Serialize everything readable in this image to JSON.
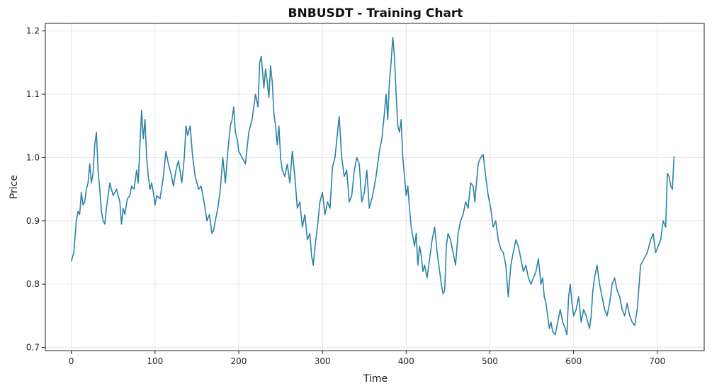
{
  "chart_data": {
    "type": "line",
    "title": "BNBUSDT - Training Chart",
    "xlabel": "Time",
    "ylabel": "Price",
    "xlim": [
      -31,
      756
    ],
    "ylim": [
      0.695,
      1.212
    ],
    "xticks": [
      0,
      100,
      200,
      300,
      400,
      500,
      600,
      700
    ],
    "xtick_labels": [
      "0",
      "100",
      "200",
      "300",
      "400",
      "500",
      "600",
      "700"
    ],
    "yticks": [
      0.7,
      0.8,
      0.9,
      1.0,
      1.1,
      1.2
    ],
    "ytick_labels": [
      "0.7",
      "0.8",
      "0.9",
      "1.0",
      "1.1",
      "1.2"
    ],
    "grid": true,
    "legend": "none",
    "line_color": "#2b83a6",
    "series": [
      {
        "x": [
          0,
          3,
          6,
          8,
          10,
          12,
          14,
          16,
          18,
          20,
          22,
          24,
          26,
          28,
          30,
          32,
          34,
          36,
          38,
          40,
          42,
          46,
          50,
          54,
          58,
          60,
          62,
          64,
          67,
          70,
          72,
          75,
          78,
          80,
          82,
          84,
          86,
          88,
          90,
          92,
          94,
          96,
          98,
          100,
          102,
          106,
          110,
          113,
          116,
          119,
          122,
          125,
          128,
          132,
          135,
          137,
          139,
          142,
          145,
          148,
          152,
          155,
          158,
          162,
          165,
          168,
          170,
          172,
          175,
          178,
          181,
          184,
          187,
          190,
          192,
          194,
          196,
          198,
          200,
          204,
          208,
          212,
          216,
          220,
          223,
          225,
          227,
          230,
          232,
          234,
          236,
          238,
          240,
          242,
          244,
          246,
          248,
          250,
          252,
          255,
          258,
          261,
          264,
          267,
          270,
          273,
          276,
          279,
          282,
          285,
          287,
          289,
          292,
          294,
          297,
          300,
          303,
          306,
          309,
          312,
          315,
          318,
          320,
          323,
          326,
          329,
          332,
          335,
          338,
          341,
          344,
          347,
          350,
          353,
          356,
          360,
          364,
          368,
          371,
          374,
          376,
          378,
          380,
          382,
          384,
          386,
          388,
          390,
          392,
          394,
          396,
          398,
          400,
          402,
          404,
          406,
          408,
          410,
          412,
          414,
          416,
          418,
          420,
          422,
          425,
          428,
          431,
          434,
          437,
          440,
          442,
          444,
          446,
          448,
          450,
          453,
          456,
          459,
          462,
          465,
          468,
          471,
          474,
          477,
          480,
          482,
          484,
          486,
          489,
          492,
          495,
          498,
          501,
          504,
          507,
          510,
          513,
          516,
          519,
          522,
          525,
          528,
          531,
          534,
          537,
          540,
          543,
          546,
          549,
          552,
          555,
          558,
          561,
          563,
          565,
          567,
          569,
          571,
          573,
          575,
          578,
          581,
          584,
          587,
          590,
          592,
          594,
          596,
          598,
          600,
          603,
          606,
          609,
          612,
          615,
          617,
          619,
          621,
          623,
          625,
          628,
          631,
          634,
          637,
          640,
          643,
          646,
          649,
          652,
          655,
          658,
          661,
          664,
          667,
          670,
          673,
          676,
          680,
          684,
          688,
          690,
          692,
          695,
          698,
          701,
          704,
          707,
          710,
          712,
          714,
          716,
          718,
          720
        ],
        "y": [
          0.836,
          0.85,
          0.9,
          0.915,
          0.91,
          0.945,
          0.925,
          0.93,
          0.95,
          0.96,
          0.99,
          0.96,
          0.975,
          1.02,
          1.04,
          0.98,
          0.95,
          0.915,
          0.9,
          0.895,
          0.92,
          0.96,
          0.94,
          0.95,
          0.93,
          0.895,
          0.92,
          0.91,
          0.935,
          0.94,
          0.955,
          0.95,
          0.98,
          0.96,
          1.02,
          1.075,
          1.03,
          1.06,
          1.0,
          0.97,
          0.95,
          0.96,
          0.945,
          0.925,
          0.94,
          0.935,
          0.97,
          1.01,
          0.99,
          0.975,
          0.955,
          0.98,
          0.995,
          0.96,
          1.0,
          1.05,
          1.035,
          1.05,
          1.0,
          0.97,
          0.95,
          0.955,
          0.935,
          0.9,
          0.91,
          0.88,
          0.885,
          0.9,
          0.92,
          0.95,
          1.0,
          0.96,
          1.01,
          1.05,
          1.06,
          1.08,
          1.04,
          1.03,
          1.01,
          1.0,
          0.99,
          1.04,
          1.06,
          1.1,
          1.08,
          1.15,
          1.16,
          1.11,
          1.14,
          1.12,
          1.095,
          1.145,
          1.12,
          1.07,
          1.05,
          1.02,
          1.05,
          1.0,
          0.98,
          0.97,
          0.99,
          0.96,
          1.01,
          0.97,
          0.92,
          0.93,
          0.89,
          0.91,
          0.87,
          0.88,
          0.845,
          0.83,
          0.87,
          0.89,
          0.93,
          0.945,
          0.91,
          0.93,
          0.92,
          0.985,
          1.0,
          1.04,
          1.065,
          1.0,
          0.97,
          0.98,
          0.93,
          0.94,
          0.98,
          1.0,
          0.99,
          0.93,
          0.945,
          0.98,
          0.92,
          0.94,
          0.97,
          1.01,
          1.03,
          1.07,
          1.1,
          1.06,
          1.12,
          1.15,
          1.19,
          1.16,
          1.1,
          1.05,
          1.04,
          1.06,
          1.0,
          0.97,
          0.94,
          0.955,
          0.92,
          0.89,
          0.875,
          0.86,
          0.88,
          0.83,
          0.86,
          0.845,
          0.82,
          0.83,
          0.81,
          0.84,
          0.87,
          0.89,
          0.85,
          0.82,
          0.8,
          0.785,
          0.79,
          0.86,
          0.88,
          0.87,
          0.85,
          0.83,
          0.88,
          0.9,
          0.91,
          0.93,
          0.92,
          0.96,
          0.955,
          0.93,
          0.96,
          0.99,
          1.0,
          1.005,
          0.97,
          0.94,
          0.92,
          0.89,
          0.9,
          0.87,
          0.855,
          0.85,
          0.83,
          0.78,
          0.83,
          0.85,
          0.87,
          0.86,
          0.84,
          0.82,
          0.83,
          0.81,
          0.8,
          0.81,
          0.82,
          0.84,
          0.8,
          0.81,
          0.78,
          0.77,
          0.75,
          0.73,
          0.74,
          0.725,
          0.72,
          0.74,
          0.76,
          0.74,
          0.73,
          0.72,
          0.78,
          0.8,
          0.77,
          0.75,
          0.76,
          0.78,
          0.74,
          0.76,
          0.75,
          0.74,
          0.73,
          0.75,
          0.79,
          0.81,
          0.83,
          0.8,
          0.78,
          0.76,
          0.75,
          0.77,
          0.8,
          0.81,
          0.79,
          0.78,
          0.76,
          0.75,
          0.77,
          0.75,
          0.74,
          0.735,
          0.76,
          0.83,
          0.84,
          0.85,
          0.86,
          0.87,
          0.88,
          0.85,
          0.86,
          0.87,
          0.9,
          0.89,
          0.975,
          0.97,
          0.955,
          0.95,
          1.002
        ]
      }
    ]
  }
}
